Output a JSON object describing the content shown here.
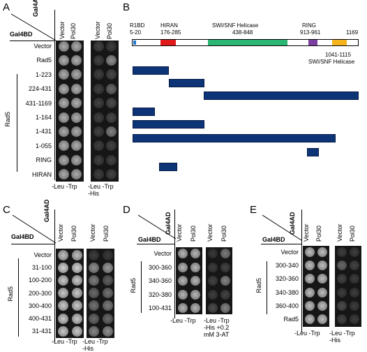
{
  "panels": {
    "A": {
      "letter": "A",
      "header_ad": "Gal4AD",
      "header_bd": "Gal4BD",
      "col_vector": "Vector",
      "col_pol30": "Pol30",
      "rows": [
        "Vector",
        "Rad5",
        "1-223",
        "224-431",
        "431-1169",
        "1-164",
        "1-431",
        "1-055",
        "RING",
        "HIRAN"
      ],
      "group_label": "Rad5",
      "footer_left": "-Leu -Trp",
      "footer_right": "-Leu -Trp\n-His"
    },
    "B": {
      "letter": "B",
      "domains": [
        {
          "name": "R1BD",
          "range": "5-20",
          "color": "#1f77c8"
        },
        {
          "name": "HIRAN",
          "range": "176-285",
          "color": "#e01a1a"
        },
        {
          "name": "SWI/SNF Helicase",
          "range": "438-848",
          "color": "#2bb673"
        },
        {
          "name": "RING",
          "range": "913-961",
          "color": "#7b3fa0"
        },
        {
          "name": "SWI/SNF Helicase",
          "range": "1041-1115",
          "color": "#f5b41d"
        }
      ],
      "end_label": "1169"
    },
    "C": {
      "letter": "C",
      "header_ad": "Gal4AD",
      "header_bd": "Gal4BD",
      "col_vector": "Vector",
      "col_pol30": "Pol30",
      "rows": [
        "Vector",
        "31-100",
        "100-200",
        "200-300",
        "300-400",
        "400-431",
        "31-431"
      ],
      "group_label": "Rad5",
      "footer_left": "-Leu -Trp",
      "footer_right": "-Leu -Trp\n-His"
    },
    "D": {
      "letter": "D",
      "header_ad": "Gal4AD",
      "header_bd": "Gal4BD",
      "col_vector": "Vector",
      "col_pol30": "Pol30",
      "rows": [
        "Vector",
        "300-360",
        "340-360",
        "320-380",
        "100-431"
      ],
      "group_label": "Rad5",
      "footer_left": "-Leu -Trp",
      "footer_right": "-Leu -Trp\n-His +0.2\nmM 3-AT"
    },
    "E": {
      "letter": "E",
      "header_ad": "Gal4AD",
      "header_bd": "Gal4BD",
      "col_vector": "Vector",
      "col_pol30": "Pol30",
      "rows": [
        "Vector",
        "300-340",
        "320-360",
        "340-380",
        "360-400",
        "Rad5"
      ],
      "group_label": "Rad5",
      "footer_left": "-Leu -Trp",
      "footer_right": "-Leu -Trp\n-His"
    }
  }
}
